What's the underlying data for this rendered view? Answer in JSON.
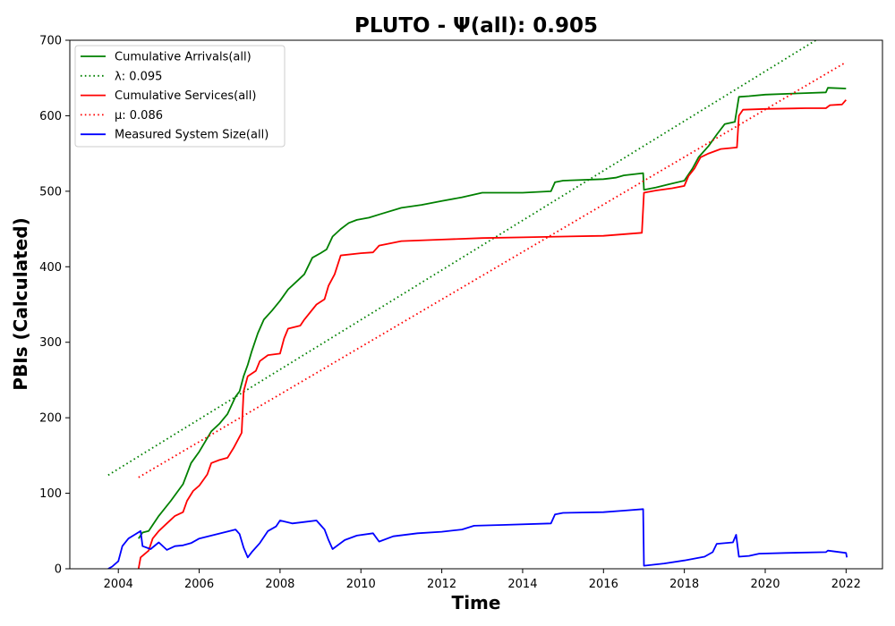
{
  "chart_data": {
    "type": "line",
    "title": "PLUTO -  Ψ(all): 0.905",
    "xlabel": "Time",
    "ylabel": "PBIs (Calculated)",
    "xlim": [
      2002.8,
      2022.9
    ],
    "ylim": [
      0,
      700
    ],
    "x_ticks": [
      2004,
      2006,
      2008,
      2010,
      2012,
      2014,
      2016,
      2018,
      2020,
      2022
    ],
    "y_ticks": [
      0,
      100,
      200,
      300,
      400,
      500,
      600,
      700
    ],
    "grid": false,
    "legend_position": "upper-left",
    "series": [
      {
        "name": "Cumulative Arrivals(all)",
        "color": "#008000",
        "style": "solid",
        "points": [
          [
            2004.5,
            40
          ],
          [
            2004.6,
            48
          ],
          [
            2004.75,
            50
          ],
          [
            2005.0,
            70
          ],
          [
            2005.3,
            90
          ],
          [
            2005.6,
            112
          ],
          [
            2005.8,
            140
          ],
          [
            2006.0,
            155
          ],
          [
            2006.3,
            182
          ],
          [
            2006.5,
            192
          ],
          [
            2006.7,
            205
          ],
          [
            2006.9,
            228
          ],
          [
            2007.0,
            235
          ],
          [
            2007.1,
            255
          ],
          [
            2007.2,
            270
          ],
          [
            2007.3,
            288
          ],
          [
            2007.45,
            312
          ],
          [
            2007.6,
            330
          ],
          [
            2007.8,
            342
          ],
          [
            2008.0,
            355
          ],
          [
            2008.2,
            370
          ],
          [
            2008.4,
            380
          ],
          [
            2008.6,
            390
          ],
          [
            2008.8,
            412
          ],
          [
            2009.0,
            418
          ],
          [
            2009.15,
            423
          ],
          [
            2009.3,
            440
          ],
          [
            2009.5,
            450
          ],
          [
            2009.7,
            458
          ],
          [
            2009.9,
            462
          ],
          [
            2010.2,
            465
          ],
          [
            2010.5,
            470
          ],
          [
            2011.0,
            478
          ],
          [
            2011.5,
            482
          ],
          [
            2012.0,
            487
          ],
          [
            2012.5,
            492
          ],
          [
            2013.0,
            498
          ],
          [
            2014.0,
            498
          ],
          [
            2014.7,
            500
          ],
          [
            2014.8,
            512
          ],
          [
            2015.0,
            514
          ],
          [
            2016.0,
            516
          ],
          [
            2016.3,
            518
          ],
          [
            2016.5,
            521
          ],
          [
            2016.98,
            524
          ],
          [
            2017.0,
            502
          ],
          [
            2017.3,
            505
          ],
          [
            2017.6,
            509
          ],
          [
            2018.0,
            514
          ],
          [
            2018.2,
            530
          ],
          [
            2018.35,
            545
          ],
          [
            2018.6,
            560
          ],
          [
            2018.8,
            575
          ],
          [
            2019.0,
            589
          ],
          [
            2019.25,
            592
          ],
          [
            2019.35,
            625
          ],
          [
            2019.6,
            626
          ],
          [
            2020.0,
            628
          ],
          [
            2021.0,
            630
          ],
          [
            2021.5,
            631
          ],
          [
            2021.55,
            637
          ],
          [
            2022.0,
            636
          ]
        ]
      },
      {
        "name": "λ: 0.095",
        "color": "#008000",
        "style": "dotted",
        "points": [
          [
            2003.75,
            124
          ],
          [
            2021.25,
            700
          ]
        ]
      },
      {
        "name": "Cumulative Services(all)",
        "color": "#ff0000",
        "style": "solid",
        "points": [
          [
            2004.5,
            0
          ],
          [
            2004.55,
            15
          ],
          [
            2004.75,
            24
          ],
          [
            2004.85,
            40
          ],
          [
            2005.0,
            50
          ],
          [
            2005.2,
            60
          ],
          [
            2005.4,
            70
          ],
          [
            2005.6,
            75
          ],
          [
            2005.7,
            90
          ],
          [
            2005.85,
            103
          ],
          [
            2006.0,
            110
          ],
          [
            2006.2,
            125
          ],
          [
            2006.3,
            140
          ],
          [
            2006.5,
            144
          ],
          [
            2006.7,
            147
          ],
          [
            2006.85,
            160
          ],
          [
            2007.0,
            175
          ],
          [
            2007.05,
            180
          ],
          [
            2007.1,
            235
          ],
          [
            2007.2,
            255
          ],
          [
            2007.4,
            262
          ],
          [
            2007.5,
            275
          ],
          [
            2007.7,
            283
          ],
          [
            2008.0,
            285
          ],
          [
            2008.1,
            305
          ],
          [
            2008.2,
            318
          ],
          [
            2008.5,
            322
          ],
          [
            2008.6,
            330
          ],
          [
            2008.9,
            350
          ],
          [
            2009.1,
            357
          ],
          [
            2009.2,
            375
          ],
          [
            2009.35,
            390
          ],
          [
            2009.5,
            415
          ],
          [
            2010.0,
            418
          ],
          [
            2010.3,
            419
          ],
          [
            2010.45,
            428
          ],
          [
            2011.0,
            434
          ],
          [
            2012.0,
            436
          ],
          [
            2013.0,
            438
          ],
          [
            2014.0,
            439
          ],
          [
            2015.0,
            440
          ],
          [
            2016.0,
            441
          ],
          [
            2016.95,
            445
          ],
          [
            2017.0,
            498
          ],
          [
            2017.3,
            501
          ],
          [
            2017.7,
            504
          ],
          [
            2018.0,
            507
          ],
          [
            2018.1,
            520
          ],
          [
            2018.25,
            530
          ],
          [
            2018.4,
            545
          ],
          [
            2018.6,
            550
          ],
          [
            2018.9,
            556
          ],
          [
            2019.3,
            558
          ],
          [
            2019.35,
            600
          ],
          [
            2019.45,
            608
          ],
          [
            2020.0,
            609
          ],
          [
            2021.0,
            610
          ],
          [
            2021.5,
            610
          ],
          [
            2021.6,
            614
          ],
          [
            2021.9,
            615
          ],
          [
            2022.0,
            621
          ]
        ]
      },
      {
        "name": "μ: 0.086",
        "color": "#ff0000",
        "style": "dotted",
        "points": [
          [
            2004.5,
            121
          ],
          [
            2022.0,
            671
          ]
        ]
      },
      {
        "name": "Measured System Size(all)",
        "color": "#0000ff",
        "style": "solid",
        "points": [
          [
            2003.75,
            0
          ],
          [
            2003.85,
            3
          ],
          [
            2004.0,
            10
          ],
          [
            2004.1,
            30
          ],
          [
            2004.25,
            40
          ],
          [
            2004.4,
            45
          ],
          [
            2004.55,
            50
          ],
          [
            2004.6,
            30
          ],
          [
            2004.8,
            26
          ],
          [
            2005.0,
            35
          ],
          [
            2005.2,
            25
          ],
          [
            2005.4,
            30
          ],
          [
            2005.6,
            31
          ],
          [
            2005.8,
            34
          ],
          [
            2006.0,
            40
          ],
          [
            2006.3,
            44
          ],
          [
            2006.6,
            48
          ],
          [
            2006.9,
            52
          ],
          [
            2007.0,
            46
          ],
          [
            2007.1,
            28
          ],
          [
            2007.2,
            15
          ],
          [
            2007.3,
            22
          ],
          [
            2007.5,
            34
          ],
          [
            2007.7,
            50
          ],
          [
            2007.9,
            56
          ],
          [
            2008.0,
            64
          ],
          [
            2008.3,
            60
          ],
          [
            2008.6,
            62
          ],
          [
            2008.9,
            64
          ],
          [
            2009.1,
            52
          ],
          [
            2009.2,
            38
          ],
          [
            2009.3,
            26
          ],
          [
            2009.6,
            38
          ],
          [
            2009.9,
            44
          ],
          [
            2010.3,
            47
          ],
          [
            2010.45,
            36
          ],
          [
            2010.8,
            43
          ],
          [
            2011.4,
            47
          ],
          [
            2012.0,
            49
          ],
          [
            2012.5,
            52
          ],
          [
            2012.8,
            57
          ],
          [
            2013.5,
            58
          ],
          [
            2014.7,
            60
          ],
          [
            2014.8,
            72
          ],
          [
            2015.0,
            74
          ],
          [
            2016.0,
            75
          ],
          [
            2016.5,
            77
          ],
          [
            2016.98,
            79
          ],
          [
            2017.0,
            4
          ],
          [
            2017.5,
            7
          ],
          [
            2018.0,
            11
          ],
          [
            2018.5,
            16
          ],
          [
            2018.7,
            22
          ],
          [
            2018.8,
            33
          ],
          [
            2019.2,
            35
          ],
          [
            2019.28,
            45
          ],
          [
            2019.35,
            16
          ],
          [
            2019.6,
            17
          ],
          [
            2019.85,
            20
          ],
          [
            2020.5,
            21
          ],
          [
            2021.5,
            22
          ],
          [
            2021.55,
            24
          ],
          [
            2022.0,
            21
          ],
          [
            2022.02,
            15
          ]
        ]
      }
    ],
    "legend": [
      {
        "label": "Cumulative Arrivals(all)",
        "color": "#008000",
        "style": "solid"
      },
      {
        "label": "λ: 0.095",
        "color": "#008000",
        "style": "dotted"
      },
      {
        "label": "Cumulative Services(all)",
        "color": "#ff0000",
        "style": "solid"
      },
      {
        "label": "μ: 0.086",
        "color": "#ff0000",
        "style": "dotted"
      },
      {
        "label": "Measured System Size(all)",
        "color": "#0000ff",
        "style": "solid"
      }
    ]
  }
}
